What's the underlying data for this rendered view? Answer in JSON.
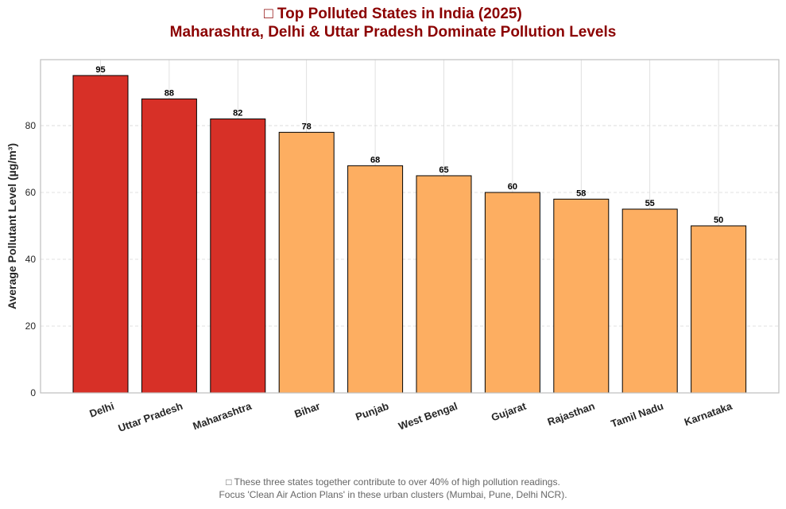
{
  "chart_data": {
    "type": "bar",
    "title_line1": "□ Top Polluted States in India (2025)",
    "title_line2": "Maharashtra, Delhi & Uttar Pradesh Dominate Pollution Levels",
    "ylabel": "Average Pollutant Level (µg/m³)",
    "xlabel": "",
    "categories": [
      "Delhi",
      "Uttar Pradesh",
      "Maharashtra",
      "Bihar",
      "Punjab",
      "West Bengal",
      "Gujarat",
      "Rajasthan",
      "Tamil Nadu",
      "Karnataka"
    ],
    "values": [
      95,
      88,
      82,
      78,
      68,
      65,
      60,
      58,
      55,
      50
    ],
    "value_labels": [
      "95",
      "88",
      "82",
      "78",
      "68",
      "65",
      "60",
      "58",
      "55",
      "50"
    ],
    "highlight": [
      true,
      true,
      true,
      false,
      false,
      false,
      false,
      false,
      false,
      false
    ],
    "ylim": [
      0,
      99.75
    ],
    "yticks": [
      0,
      20,
      40,
      60,
      80
    ],
    "ytick_labels": [
      "0",
      "20",
      "40",
      "60",
      "80"
    ],
    "grid": true,
    "footnote_line1": "□ These three states together contribute to over 40% of high pollution readings.",
    "footnote_line2": "Focus 'Clean Air Action Plans' in these urban clusters (Mumbai, Pune, Delhi NCR).",
    "colors": {
      "highlight": "#d73027",
      "normal": "#fdae61",
      "edge": "#000000",
      "title": "#8b0000",
      "grid": "#d9d9d9",
      "axis": "#bfbfbf",
      "tick_text": "#262626",
      "footnote": "#666666"
    }
  }
}
